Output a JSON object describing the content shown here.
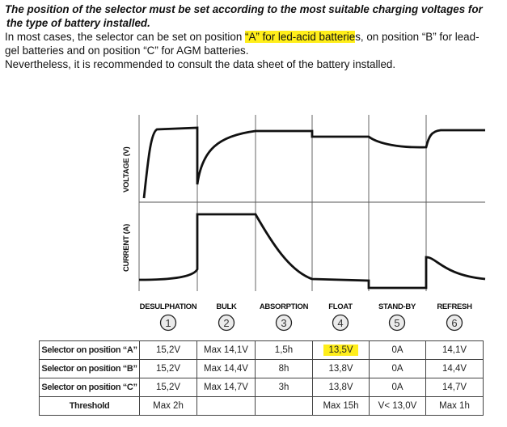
{
  "intro": {
    "title_line1": "The position of the selector must be set according to the most suitable charging voltages for",
    "title_line2": "the type of battery installed.",
    "para1_before": "In most cases, the selector can be set on position ",
    "para1_highlight": "“A” for led-acid batterie",
    "para1_after": "s, on position “B” for lead-",
    "para1_line2": "gel batteries and on position “C” for AGM batteries.",
    "para2": "Nevertheless, it is recommended to consult the data sheet of the battery installed."
  },
  "chart": {
    "voltage_label": "VOLTAGE (V)",
    "current_label": "CURRENT (A)",
    "stages": [
      {
        "name": "DESULPHATION",
        "number": "1"
      },
      {
        "name": "BULK",
        "number": "2"
      },
      {
        "name": "ABSORPTION",
        "number": "3"
      },
      {
        "name": "FLOAT",
        "number": "4"
      },
      {
        "name": "STAND-BY",
        "number": "5"
      },
      {
        "name": "REFRESH",
        "number": "6"
      }
    ]
  },
  "table": {
    "rows": [
      {
        "label": "Selector on position “A”",
        "cells": [
          "15,2V",
          "Max 14,1V",
          "1,5h",
          "13,5V",
          "0A",
          "14,1V"
        ]
      },
      {
        "label": "Selector on position “B”",
        "cells": [
          "15,2V",
          "Max 14,4V",
          "8h",
          "13,8V",
          "0A",
          "14,4V"
        ]
      },
      {
        "label": "Selector on position “C”",
        "cells": [
          "15,2V",
          "Max 14,7V",
          "3h",
          "13,8V",
          "0A",
          "14,7V"
        ]
      },
      {
        "label": "Threshold",
        "cells": [
          "Max 2h",
          "",
          "",
          "Max 15h",
          "V< 13,0V",
          "Max 1h"
        ]
      }
    ],
    "highlight_color": "#ffee1a"
  }
}
